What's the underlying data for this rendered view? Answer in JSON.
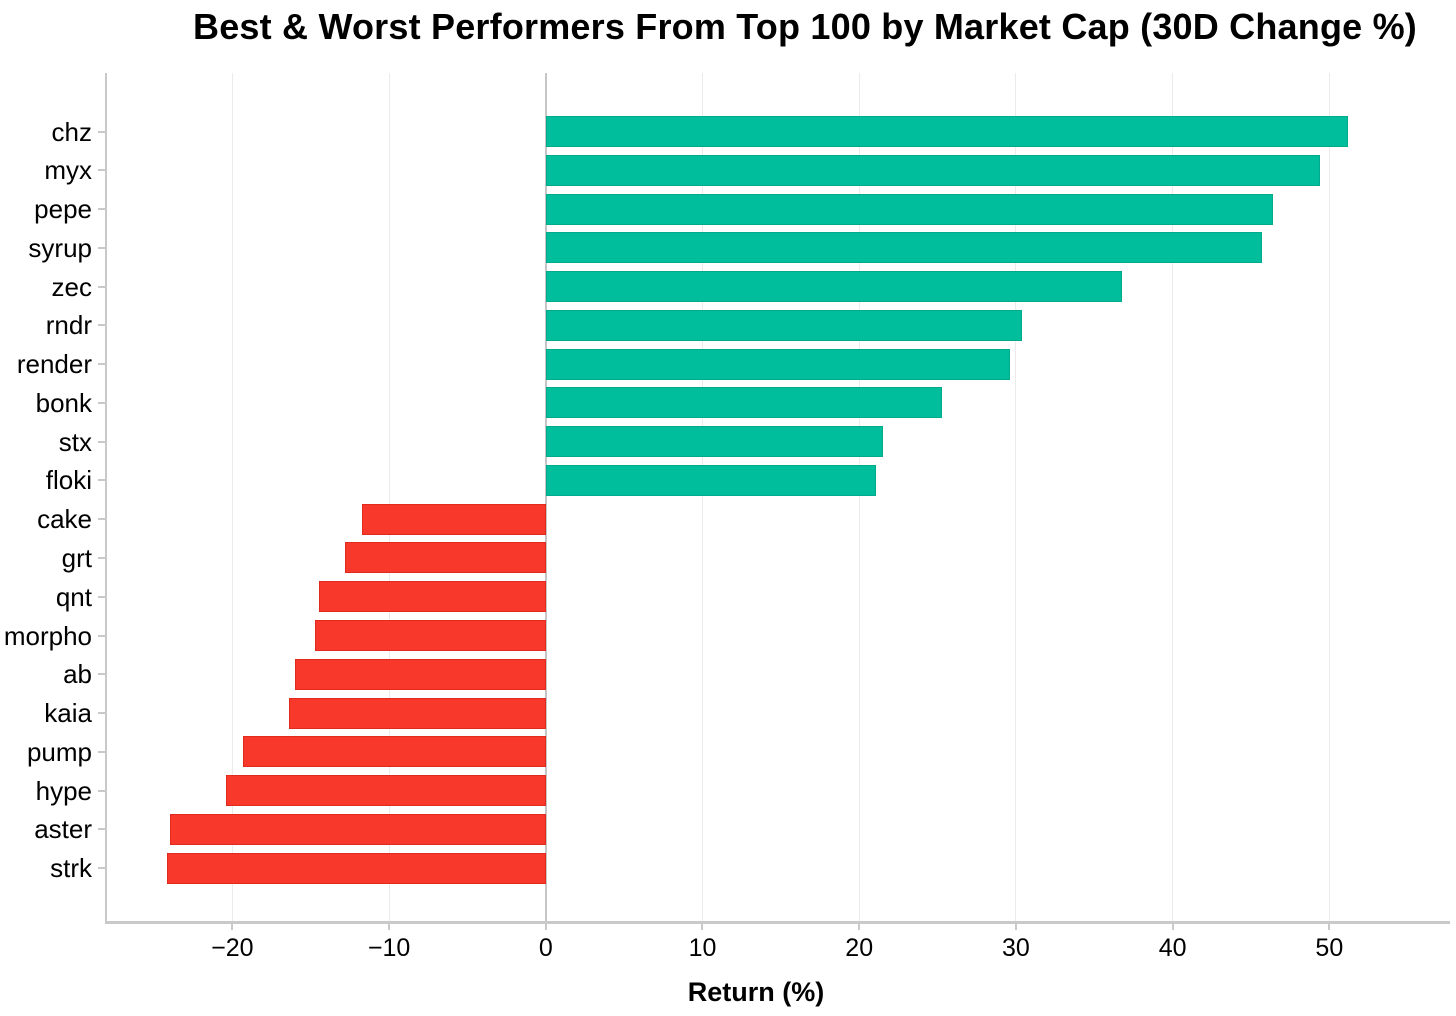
{
  "chart_data": {
    "type": "bar",
    "orientation": "horizontal",
    "title": "Best & Worst Performers From Top 100 by Market Cap  (30D Change %)",
    "xlabel": "Return (%)",
    "ylabel": "",
    "categories": [
      "chz",
      "myx",
      "pepe",
      "syrup",
      "zec",
      "rndr",
      "render",
      "bonk",
      "stx",
      "floki",
      "cake",
      "grt",
      "qnt",
      "morpho",
      "ab",
      "kaia",
      "pump",
      "hype",
      "aster",
      "strk"
    ],
    "values": [
      51.2,
      49.4,
      46.4,
      45.7,
      36.8,
      30.4,
      29.6,
      25.3,
      21.5,
      21.1,
      -11.7,
      -12.8,
      -14.5,
      -14.7,
      -16.0,
      -16.4,
      -19.3,
      -20.4,
      -24.0,
      -24.2
    ],
    "xticks": [
      -20,
      -10,
      0,
      10,
      20,
      30,
      40,
      50
    ],
    "xtick_labels": [
      "−20",
      "−10",
      "0",
      "10",
      "20",
      "30",
      "40",
      "50"
    ],
    "xlim": [
      -28.0,
      57.7
    ],
    "grid": true,
    "legend": "none",
    "colors": {
      "positive_fill": "#00BD9B",
      "positive_edge": "#00AA8B",
      "negative_fill": "#F8382B",
      "negative_edge": "#E02A1E",
      "gridline": "#EBEBEB",
      "zero_line": "#C6C6C6",
      "spine": "#C9C9C9",
      "text": "#000000",
      "background": "#FFFFFF"
    }
  }
}
